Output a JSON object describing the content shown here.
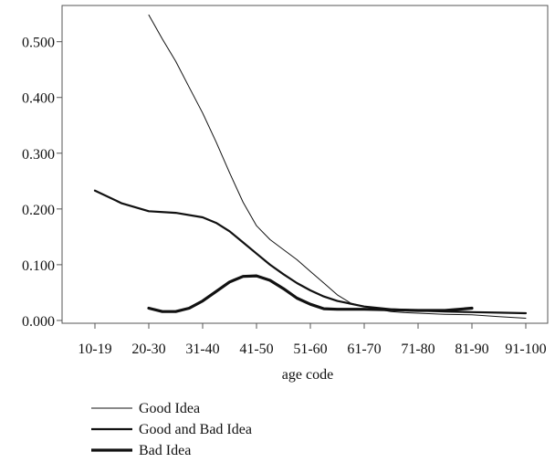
{
  "chart_data": {
    "type": "line",
    "title": "",
    "xlabel": "age code",
    "ylabel": "",
    "categories": [
      "10-19",
      "20-30",
      "31-40",
      "41-50",
      "51-60",
      "61-70",
      "71-80",
      "81-90",
      "91-100"
    ],
    "y_ticks": [
      "0.000",
      "0.100",
      "0.200",
      "0.300",
      "0.400",
      "0.500"
    ],
    "ylim": [
      -0.005,
      0.565
    ],
    "grid": false,
    "legend_position": "bottom-left",
    "series": [
      {
        "name": "Good Idea",
        "weight": "thin",
        "x": [
          1.0,
          1.25,
          1.5,
          1.75,
          2.0,
          2.25,
          2.5,
          2.75,
          3.0,
          3.25,
          3.5,
          3.75,
          4.0,
          4.25,
          4.5,
          4.75,
          5.0,
          5.25,
          5.5,
          5.75,
          6.0,
          6.25,
          6.5,
          7.0,
          7.5,
          8.0
        ],
        "values": [
          0.548,
          0.505,
          0.465,
          0.418,
          0.372,
          0.32,
          0.265,
          0.212,
          0.17,
          0.145,
          0.127,
          0.109,
          0.088,
          0.067,
          0.046,
          0.031,
          0.025,
          0.02,
          0.016,
          0.014,
          0.013,
          0.012,
          0.011,
          0.01,
          0.007,
          0.004
        ]
      },
      {
        "name": "Good and Bad Idea",
        "weight": "medium",
        "x": [
          0.0,
          0.5,
          1.0,
          1.5,
          2.0,
          2.25,
          2.5,
          2.75,
          3.0,
          3.25,
          3.5,
          3.75,
          4.0,
          4.25,
          4.5,
          5.0,
          5.5,
          6.0,
          6.5,
          7.0,
          7.5,
          8.0
        ],
        "values": [
          0.233,
          0.21,
          0.196,
          0.193,
          0.185,
          0.175,
          0.16,
          0.14,
          0.12,
          0.1,
          0.083,
          0.067,
          0.054,
          0.043,
          0.035,
          0.025,
          0.02,
          0.018,
          0.016,
          0.015,
          0.014,
          0.013
        ]
      },
      {
        "name": "Bad Idea",
        "weight": "thick",
        "x": [
          1.0,
          1.25,
          1.5,
          1.75,
          2.0,
          2.25,
          2.5,
          2.75,
          3.0,
          3.25,
          3.5,
          3.75,
          4.0,
          4.25,
          4.5,
          5.0,
          5.5,
          6.0,
          6.5,
          7.0
        ],
        "values": [
          0.022,
          0.016,
          0.016,
          0.022,
          0.035,
          0.052,
          0.069,
          0.079,
          0.08,
          0.072,
          0.057,
          0.04,
          0.029,
          0.021,
          0.02,
          0.02,
          0.019,
          0.018,
          0.018,
          0.022
        ]
      }
    ]
  }
}
